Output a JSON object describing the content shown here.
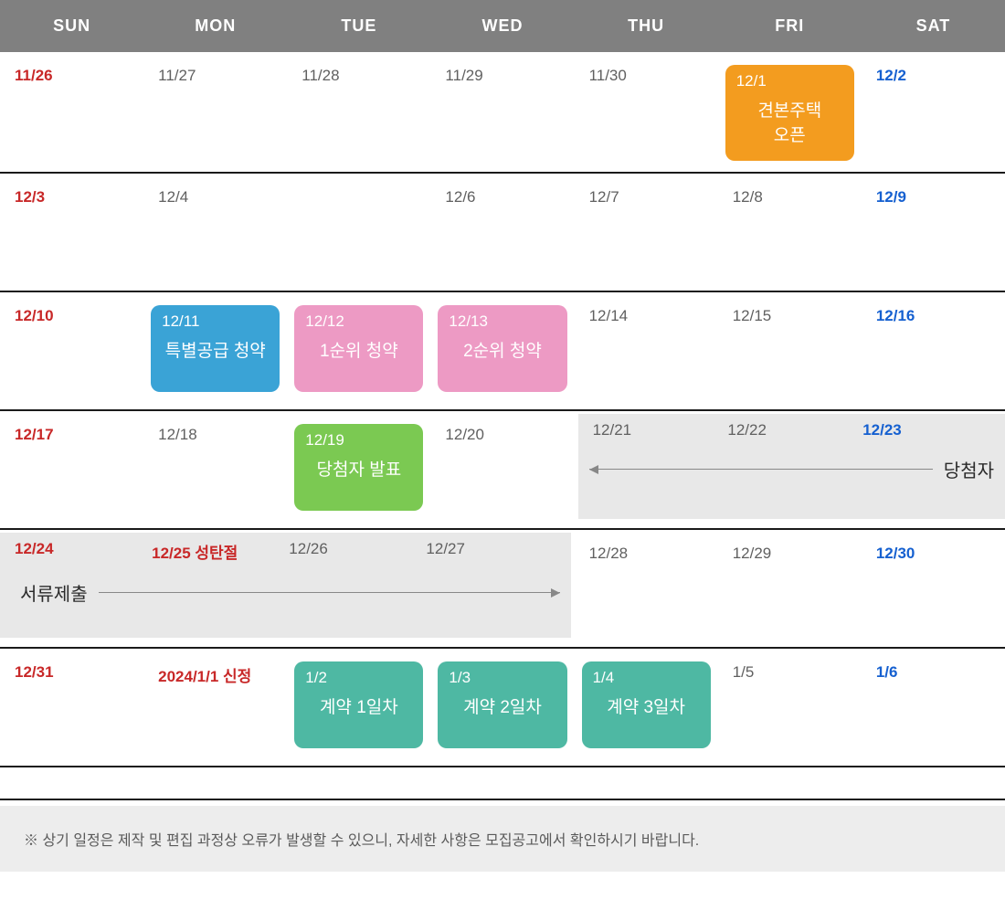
{
  "colors": {
    "header_bg": "#808080",
    "header_text": "#ffffff",
    "border": "#1a1a1a",
    "date_default": "#606060",
    "sunday": "#c82828",
    "saturday": "#1560d0",
    "holiday": "#c82828",
    "event_orange": "#f39c1f",
    "event_blue": "#3aa3d6",
    "event_pink": "#ed9ac4",
    "event_green": "#7bc952",
    "event_teal": "#4eb8a3",
    "span_bg": "#e8e8e8",
    "footer_bg": "#ededed",
    "footer_text": "#5a5a5a"
  },
  "day_headers": [
    "SUN",
    "MON",
    "TUE",
    "WED",
    "THU",
    "FRI",
    "SAT"
  ],
  "weeks": [
    {
      "sun": "11/26",
      "mon": "11/27",
      "tue": "11/28",
      "wed": "11/29",
      "thu": "11/30",
      "fri": "12/1",
      "sat": "12/2",
      "fri_event": {
        "date": "12/1",
        "label": "견본주택\n오픈"
      }
    },
    {
      "sun": "12/3",
      "mon": "12/4",
      "tue": "",
      "wed": "12/6",
      "thu": "12/7",
      "fri": "12/8",
      "sat": "12/9"
    },
    {
      "sun": "12/10",
      "mon": "12/11",
      "tue": "12/12",
      "wed": "12/13",
      "thu": "12/14",
      "fri": "12/15",
      "sat": "12/16",
      "mon_event": {
        "date": "12/11",
        "label": "특별공급 청약"
      },
      "tue_event": {
        "date": "12/12",
        "label": "1순위 청약"
      },
      "wed_event": {
        "date": "12/13",
        "label": "2순위 청약"
      }
    },
    {
      "sun": "12/17",
      "mon": "12/18",
      "tue": "12/19",
      "wed": "12/20",
      "thu": "12/21",
      "fri": "12/22",
      "sat": "12/23",
      "tue_event": {
        "date": "12/19",
        "label": "당첨자 발표"
      },
      "span_right": {
        "dates": [
          "12/21",
          "12/22",
          "12/23"
        ],
        "label": "당첨자"
      }
    },
    {
      "sun": "12/24",
      "mon": "12/25 성탄절",
      "tue": "12/26",
      "wed": "12/27",
      "thu": "12/28",
      "fri": "12/29",
      "sat": "12/30",
      "span_left": {
        "dates": [
          "12/24",
          "12/25 성탄절",
          "12/26",
          "12/27"
        ],
        "label": "서류제출"
      }
    },
    {
      "sun": "12/31",
      "mon": "2024/1/1 신정",
      "tue": "1/2",
      "wed": "1/3",
      "thu": "1/4",
      "fri": "1/5",
      "sat": "1/6",
      "tue_event": {
        "date": "1/2",
        "label": "계약 1일차"
      },
      "wed_event": {
        "date": "1/3",
        "label": "계약 2일차"
      },
      "thu_event": {
        "date": "1/4",
        "label": "계약 3일차"
      }
    }
  ],
  "footer": "※ 상기 일정은 제작 및 편집 과정상 오류가 발생할 수 있으니, 자세한 사항은 모집공고에서 확인하시기 바랍니다."
}
